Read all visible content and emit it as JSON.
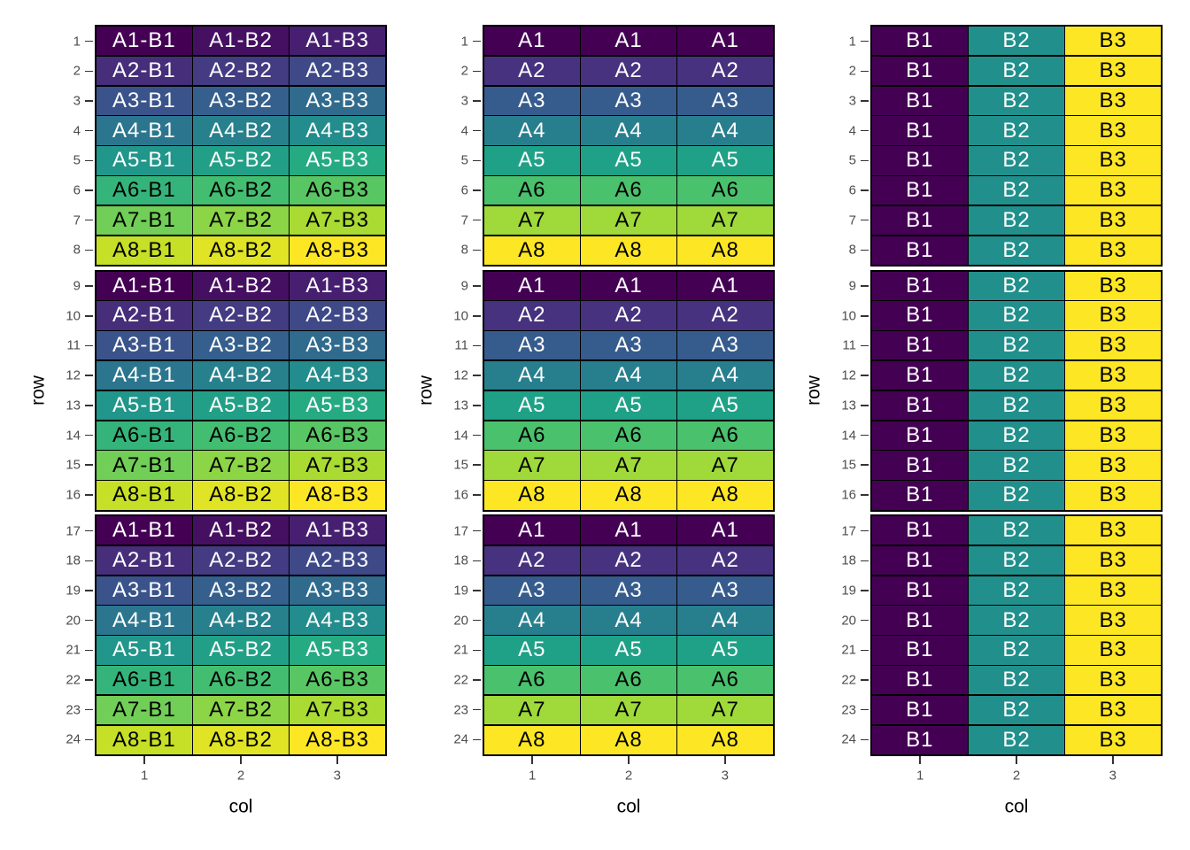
{
  "figure": {
    "background": "#FFFFFF",
    "n_subplots": 3
  },
  "style": {
    "tick_label_color": "#4D4D4D",
    "tick_mark_color": "#333333",
    "axis_title_color": "#000000",
    "panel_border_color": "#000000",
    "cell_border_color": "#000000",
    "text_light": "#FFFFFF",
    "text_dark": "#000000"
  },
  "axes": {
    "x_title": "col",
    "y_title": "row",
    "x_ticks": [
      "1",
      "2",
      "3"
    ],
    "y_ticks": [
      "1",
      "2",
      "3",
      "4",
      "5",
      "6",
      "7",
      "8",
      "9",
      "10",
      "11",
      "12",
      "13",
      "14",
      "15",
      "16",
      "17",
      "18",
      "19",
      "20",
      "21",
      "22",
      "23",
      "24"
    ]
  },
  "palettes": {
    "viridis3": [
      "#440154",
      "#21908C",
      "#FDE725"
    ],
    "viridis8": [
      "#440154",
      "#46327E",
      "#365C8D",
      "#277F8E",
      "#1FA187",
      "#4AC16D",
      "#9FDA3A",
      "#FDE725"
    ],
    "viridis24": [
      "#440154",
      "#461062",
      "#471F71",
      "#462E7A",
      "#433C82",
      "#3F4988",
      "#3A548B",
      "#35608D",
      "#306B8D",
      "#2B768E",
      "#27818D",
      "#238C8C",
      "#21968A",
      "#22A087",
      "#25AA82",
      "#34B47A",
      "#43BE71",
      "#59C664",
      "#71CE56",
      "#8BD546",
      "#A9DB33",
      "#C5E026",
      "#E1E425",
      "#FDE725"
    ]
  },
  "plots": [
    {
      "name": "interaction-heatmap",
      "label_pattern": "A{a}-B{b}",
      "palette": "viridis24",
      "level_rule": "(a-1)*3+(b-1)",
      "dark_text_from_level": 15
    },
    {
      "name": "a-heatmap",
      "label_pattern": "A{a}",
      "palette": "viridis8",
      "level_rule": "a-1",
      "dark_text_from_level": 5
    },
    {
      "name": "b-heatmap",
      "label_pattern": "B{b}",
      "palette": "viridis3",
      "level_rule": "b-1",
      "dark_text_from_level": 2
    }
  ],
  "chart_data": [
    {
      "type": "heatmap",
      "xlabel": "col",
      "ylabel": "row",
      "x": [
        1,
        2,
        3
      ],
      "y": [
        1,
        2,
        3,
        4,
        5,
        6,
        7,
        8,
        9,
        10,
        11,
        12,
        13,
        14,
        15,
        16,
        17,
        18,
        19,
        20,
        21,
        22,
        23,
        24
      ],
      "facet_row_spans": [
        [
          1,
          8
        ],
        [
          9,
          16
        ],
        [
          17,
          24
        ]
      ],
      "legend": "none",
      "grid": "off",
      "cell_label_rule": "A{((row-1) mod 8)+1}-B{col}",
      "levels": [
        "A1-B1",
        "A1-B2",
        "A1-B3",
        "A2-B1",
        "A2-B2",
        "A2-B3",
        "A3-B1",
        "A3-B2",
        "A3-B3",
        "A4-B1",
        "A4-B2",
        "A4-B3",
        "A5-B1",
        "A5-B2",
        "A5-B3",
        "A6-B1",
        "A6-B2",
        "A6-B3",
        "A7-B1",
        "A7-B2",
        "A7-B3",
        "A8-B1",
        "A8-B2",
        "A8-B3"
      ],
      "fill": "24-level viridis mapped to interaction(A,B); same A cycle repeats in each facet",
      "palette_ref": "viridis24"
    },
    {
      "type": "heatmap",
      "xlabel": "col",
      "ylabel": "row",
      "x": [
        1,
        2,
        3
      ],
      "y": [
        1,
        2,
        3,
        4,
        5,
        6,
        7,
        8,
        9,
        10,
        11,
        12,
        13,
        14,
        15,
        16,
        17,
        18,
        19,
        20,
        21,
        22,
        23,
        24
      ],
      "facet_row_spans": [
        [
          1,
          8
        ],
        [
          9,
          16
        ],
        [
          17,
          24
        ]
      ],
      "legend": "none",
      "grid": "off",
      "cell_label_rule": "A{((row-1) mod 8)+1} (identical across all 3 columns)",
      "levels": [
        "A1",
        "A2",
        "A3",
        "A4",
        "A5",
        "A6",
        "A7",
        "A8"
      ],
      "fill": "8-level viridis mapped to A; same color across columns within a row",
      "palette_ref": "viridis8"
    },
    {
      "type": "heatmap",
      "xlabel": "col",
      "ylabel": "row",
      "x": [
        1,
        2,
        3
      ],
      "y": [
        1,
        2,
        3,
        4,
        5,
        6,
        7,
        8,
        9,
        10,
        11,
        12,
        13,
        14,
        15,
        16,
        17,
        18,
        19,
        20,
        21,
        22,
        23,
        24
      ],
      "facet_row_spans": [
        [
          1,
          8
        ],
        [
          9,
          16
        ],
        [
          17,
          24
        ]
      ],
      "legend": "none",
      "grid": "off",
      "cell_label_rule": "B{col} (identical down all 24 rows)",
      "levels": [
        "B1",
        "B2",
        "B3"
      ],
      "fill": "3-level viridis mapped to B; same color down each column",
      "palette_ref": "viridis3"
    }
  ]
}
